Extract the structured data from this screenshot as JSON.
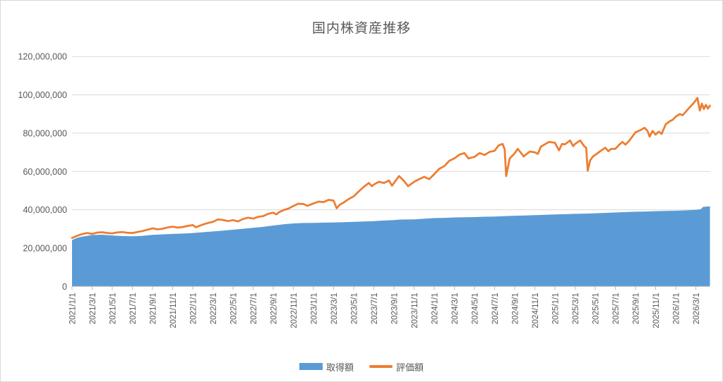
{
  "chart_data": {
    "type": "area+line combo",
    "title": "国内株資産推移",
    "unit_multiplier": 1000000,
    "grid": "horizontal-on",
    "y_axis": {
      "min": 0,
      "max": 120000000,
      "tick_step": 20000000,
      "tick_labels": [
        "0",
        "20,000,000",
        "40,000,000",
        "60,000,000",
        "80,000,000",
        "100,000,000",
        "120,000,000"
      ]
    },
    "x_axis": {
      "label_every_months": 2,
      "end_month_offset": 63.4,
      "labels": [
        "2021/1/1",
        "2021/3/1",
        "2021/5/1",
        "2021/7/1",
        "2021/9/1",
        "2021/11/1",
        "2022/1/1",
        "2022/3/1",
        "2022/5/1",
        "2022/7/1",
        "2022/9/1",
        "2022/11/1",
        "2023/1/1",
        "2023/3/1",
        "2023/5/1",
        "2023/7/1",
        "2023/9/1",
        "2023/11/1",
        "2024/1/1",
        "2024/3/1",
        "2024/5/1",
        "2024/7/1",
        "2024/9/1",
        "2024/11/1",
        "2025/1/1",
        "2025/3/1",
        "2025/5/1",
        "2025/7/1",
        "2025/9/1",
        "2025/11/1",
        "2026/1/1",
        "2026/3/1"
      ]
    },
    "legend": {
      "position": "bottom"
    },
    "series": [
      {
        "name": "取得額",
        "type": "area",
        "color": "#5B9BD5",
        "points": [
          [
            0,
            24.2
          ],
          [
            0.5,
            25.4
          ],
          [
            1,
            26.0
          ],
          [
            2,
            26.8
          ],
          [
            3,
            27.0
          ],
          [
            4,
            26.6
          ],
          [
            5,
            26.3
          ],
          [
            6,
            26.2
          ],
          [
            7,
            26.4
          ],
          [
            8,
            26.9
          ],
          [
            9,
            27.2
          ],
          [
            10,
            27.4
          ],
          [
            11,
            27.6
          ],
          [
            12,
            27.9
          ],
          [
            13,
            28.3
          ],
          [
            14,
            28.7
          ],
          [
            15,
            29.1
          ],
          [
            16,
            29.6
          ],
          [
            17,
            30.1
          ],
          [
            18,
            30.6
          ],
          [
            19,
            31.1
          ],
          [
            20,
            31.8
          ],
          [
            21,
            32.4
          ],
          [
            22,
            32.9
          ],
          [
            23,
            33.1
          ],
          [
            24,
            33.2
          ],
          [
            25,
            33.3
          ],
          [
            26,
            33.4
          ],
          [
            27,
            33.5
          ],
          [
            28,
            33.7
          ],
          [
            29,
            33.9
          ],
          [
            30,
            34.1
          ],
          [
            30.5,
            34.3
          ],
          [
            31,
            34.4
          ],
          [
            32,
            34.6
          ],
          [
            32.6,
            34.9
          ],
          [
            34,
            35.0
          ],
          [
            35,
            35.3
          ],
          [
            35.7,
            35.6
          ],
          [
            36,
            35.7
          ],
          [
            37,
            35.8
          ],
          [
            38,
            36.0
          ],
          [
            39,
            36.1
          ],
          [
            40,
            36.2
          ],
          [
            40.9,
            36.4
          ],
          [
            42,
            36.5
          ],
          [
            43,
            36.7
          ],
          [
            44,
            36.9
          ],
          [
            45,
            37.0
          ],
          [
            46,
            37.2
          ],
          [
            47,
            37.4
          ],
          [
            48,
            37.6
          ],
          [
            49,
            37.7
          ],
          [
            50,
            37.9
          ],
          [
            51,
            38.0
          ],
          [
            52,
            38.2
          ],
          [
            53,
            38.4
          ],
          [
            54,
            38.6
          ],
          [
            55,
            38.8
          ],
          [
            56,
            39.0
          ],
          [
            57,
            39.1
          ],
          [
            58,
            39.3
          ],
          [
            59,
            39.4
          ],
          [
            60,
            39.5
          ],
          [
            61,
            39.7
          ],
          [
            62,
            40.0
          ],
          [
            62.5,
            40.3
          ],
          [
            62.7,
            41.5
          ],
          [
            63,
            41.6
          ],
          [
            63.4,
            41.8
          ]
        ]
      },
      {
        "name": "評価額",
        "type": "line",
        "color": "#ED7D31",
        "stroke_width": 2.75,
        "points": [
          [
            0,
            25.3
          ],
          [
            0.5,
            26.4
          ],
          [
            1,
            27.3
          ],
          [
            1.5,
            27.9
          ],
          [
            2,
            27.4
          ],
          [
            2.5,
            28.1
          ],
          [
            3,
            28.3
          ],
          [
            3.5,
            27.9
          ],
          [
            4,
            27.7
          ],
          [
            4.5,
            28.2
          ],
          [
            5,
            28.4
          ],
          [
            5.5,
            28.0
          ],
          [
            6,
            27.9
          ],
          [
            6.5,
            28.4
          ],
          [
            7,
            28.9
          ],
          [
            7.5,
            29.6
          ],
          [
            8,
            30.3
          ],
          [
            8.5,
            29.8
          ],
          [
            9,
            30.1
          ],
          [
            9.5,
            30.8
          ],
          [
            10,
            31.2
          ],
          [
            10.5,
            30.7
          ],
          [
            11,
            31.0
          ],
          [
            11.5,
            31.6
          ],
          [
            12,
            32.0
          ],
          [
            12.3,
            30.9
          ],
          [
            12.6,
            31.5
          ],
          [
            13,
            32.3
          ],
          [
            13.5,
            33.1
          ],
          [
            14,
            33.7
          ],
          [
            14.5,
            35.0
          ],
          [
            15,
            34.7
          ],
          [
            15.5,
            34.1
          ],
          [
            16,
            34.6
          ],
          [
            16.5,
            33.9
          ],
          [
            17,
            35.2
          ],
          [
            17.5,
            35.9
          ],
          [
            18,
            35.4
          ],
          [
            18.5,
            36.3
          ],
          [
            19,
            36.7
          ],
          [
            19.5,
            37.9
          ],
          [
            20,
            38.5
          ],
          [
            20.3,
            37.6
          ],
          [
            20.6,
            38.8
          ],
          [
            21,
            39.8
          ],
          [
            21.5,
            40.6
          ],
          [
            22,
            42.0
          ],
          [
            22.5,
            43.2
          ],
          [
            23,
            43.0
          ],
          [
            23.4,
            42.1
          ],
          [
            23.7,
            42.7
          ],
          [
            24,
            43.3
          ],
          [
            24.5,
            44.3
          ],
          [
            25,
            44.0
          ],
          [
            25.5,
            45.2
          ],
          [
            26,
            44.8
          ],
          [
            26.3,
            40.8
          ],
          [
            26.6,
            42.6
          ],
          [
            27,
            43.8
          ],
          [
            27.5,
            45.6
          ],
          [
            28,
            47.0
          ],
          [
            28.5,
            49.6
          ],
          [
            29,
            52.0
          ],
          [
            29.5,
            54.0
          ],
          [
            29.8,
            52.3
          ],
          [
            30,
            53.2
          ],
          [
            30.5,
            54.6
          ],
          [
            31,
            54.0
          ],
          [
            31.5,
            55.3
          ],
          [
            31.8,
            52.6
          ],
          [
            32,
            54.0
          ],
          [
            32.5,
            57.6
          ],
          [
            33,
            55.0
          ],
          [
            33.4,
            52.3
          ],
          [
            34,
            54.6
          ],
          [
            34.5,
            56.0
          ],
          [
            35,
            57.2
          ],
          [
            35.5,
            56.0
          ],
          [
            36,
            58.6
          ],
          [
            36.5,
            61.4
          ],
          [
            37,
            62.8
          ],
          [
            37.5,
            65.6
          ],
          [
            38,
            66.8
          ],
          [
            38.5,
            68.8
          ],
          [
            39,
            69.6
          ],
          [
            39.4,
            66.8
          ],
          [
            40,
            67.6
          ],
          [
            40.5,
            69.6
          ],
          [
            41,
            68.6
          ],
          [
            41.5,
            70.2
          ],
          [
            42,
            70.8
          ],
          [
            42.4,
            73.6
          ],
          [
            42.8,
            74.4
          ],
          [
            43,
            71.5
          ],
          [
            43.15,
            57.6
          ],
          [
            43.5,
            66.8
          ],
          [
            44,
            69.5
          ],
          [
            44.3,
            71.8
          ],
          [
            44.9,
            67.8
          ],
          [
            45,
            68.4
          ],
          [
            45.5,
            70.4
          ],
          [
            46,
            70.0
          ],
          [
            46.3,
            69.2
          ],
          [
            46.6,
            73.0
          ],
          [
            47,
            74.2
          ],
          [
            47.4,
            75.4
          ],
          [
            48,
            75.0
          ],
          [
            48.4,
            71.0
          ],
          [
            48.7,
            74.4
          ],
          [
            49,
            74.2
          ],
          [
            49.5,
            76.2
          ],
          [
            49.8,
            73.2
          ],
          [
            50,
            74.4
          ],
          [
            50.5,
            76.2
          ],
          [
            50.9,
            73.2
          ],
          [
            51.1,
            72.4
          ],
          [
            51.25,
            60.4
          ],
          [
            51.5,
            65.8
          ],
          [
            51.8,
            68.0
          ],
          [
            52,
            68.6
          ],
          [
            52.5,
            70.6
          ],
          [
            53,
            72.4
          ],
          [
            53.3,
            70.6
          ],
          [
            53.6,
            71.8
          ],
          [
            54,
            71.8
          ],
          [
            54.4,
            74.0
          ],
          [
            54.7,
            75.4
          ],
          [
            55,
            74.0
          ],
          [
            55.4,
            76.2
          ],
          [
            56,
            80.4
          ],
          [
            56.5,
            81.6
          ],
          [
            56.9,
            82.8
          ],
          [
            57.2,
            81.2
          ],
          [
            57.4,
            78.2
          ],
          [
            57.7,
            81.2
          ],
          [
            58,
            79.2
          ],
          [
            58.3,
            80.8
          ],
          [
            58.6,
            79.6
          ],
          [
            59,
            84.6
          ],
          [
            59.4,
            86.2
          ],
          [
            59.7,
            87.0
          ],
          [
            60,
            88.6
          ],
          [
            60.4,
            90.0
          ],
          [
            60.7,
            89.4
          ],
          [
            61,
            91.2
          ],
          [
            61.4,
            93.6
          ],
          [
            61.7,
            95.2
          ],
          [
            62,
            97.2
          ],
          [
            62.15,
            98.4
          ],
          [
            62.4,
            91.8
          ],
          [
            62.6,
            95.4
          ],
          [
            62.8,
            92.6
          ],
          [
            63,
            94.8
          ],
          [
            63.2,
            92.8
          ],
          [
            63.4,
            94.4
          ]
        ]
      }
    ],
    "colors": {
      "gridline": "#D9D9D9",
      "axis_line": "#BFBFBF",
      "text": "#595959",
      "background": "#FFFFFF"
    }
  }
}
